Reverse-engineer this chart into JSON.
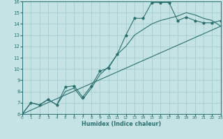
{
  "xlabel": "Humidex (Indice chaleur)",
  "xlim_min": 0,
  "xlim_max": 23,
  "ylim_min": 6,
  "ylim_max": 16,
  "xticks": [
    0,
    1,
    2,
    3,
    4,
    5,
    6,
    7,
    8,
    9,
    10,
    11,
    12,
    13,
    14,
    15,
    16,
    17,
    18,
    19,
    20,
    21,
    22,
    23
  ],
  "yticks": [
    6,
    7,
    8,
    9,
    10,
    11,
    12,
    13,
    14,
    15,
    16
  ],
  "bg_color": "#c5e3e3",
  "grid_color": "#a8d0d0",
  "line_color": "#2a7070",
  "curve1_x": [
    0,
    1,
    2,
    3,
    4,
    5,
    6,
    7,
    8,
    9,
    10,
    11,
    12,
    13,
    14,
    15,
    16,
    17,
    18,
    19,
    20,
    21,
    22,
    23
  ],
  "curve1_y": [
    6.0,
    7.0,
    6.8,
    7.3,
    6.8,
    8.4,
    8.5,
    7.5,
    8.5,
    9.8,
    10.1,
    11.3,
    13.0,
    14.5,
    14.5,
    15.9,
    15.9,
    15.9,
    14.3,
    14.6,
    14.3,
    14.1,
    14.1,
    14.3
  ],
  "curve2_x": [
    0,
    1,
    2,
    3,
    4,
    5,
    6,
    7,
    8,
    9,
    10,
    11,
    12,
    13,
    14,
    15,
    16,
    17,
    18,
    19,
    20,
    21,
    22,
    23
  ],
  "curve2_y": [
    6.0,
    7.0,
    6.8,
    7.3,
    6.8,
    8.0,
    8.3,
    7.3,
    8.3,
    9.5,
    10.2,
    11.3,
    12.0,
    13.0,
    13.5,
    14.0,
    14.3,
    14.5,
    14.7,
    15.0,
    14.8,
    14.5,
    14.3,
    13.8
  ],
  "line_x": [
    0,
    23
  ],
  "line_y": [
    6.0,
    13.8
  ]
}
